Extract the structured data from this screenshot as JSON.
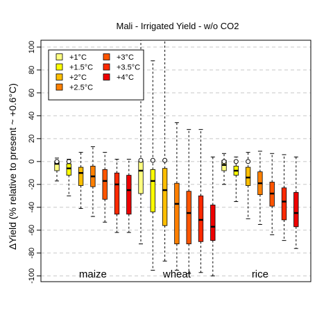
{
  "chart_data": {
    "type": "box",
    "title": "Mali - Irrigated Yield - w/o CO2",
    "ylabel": "ΔYield (% relative to present ~ +0.6°C)",
    "ylim": [
      -105,
      106
    ],
    "yticks": [
      -100,
      -80,
      -60,
      -40,
      -20,
      0,
      20,
      40,
      60,
      80,
      100
    ],
    "grid": "horizontal dashed",
    "legend": {
      "position": "top-left",
      "entries": [
        {
          "label": "+1°C",
          "color": "#FFFF80"
        },
        {
          "label": "+1.5°C",
          "color": "#FFFF00"
        },
        {
          "label": "+2°C",
          "color": "#FFBF00"
        },
        {
          "label": "+2.5°C",
          "color": "#FF8000"
        },
        {
          "label": "+3°C",
          "color": "#FF5500"
        },
        {
          "label": "+3.5°C",
          "color": "#FF2A00"
        },
        {
          "label": "+4°C",
          "color": "#EE0000"
        }
      ]
    },
    "groups": [
      {
        "name": "maize",
        "boxes": [
          {
            "warming": "+1°C",
            "whisker_low": -17,
            "q1": -8,
            "median": -2,
            "q3": 0,
            "whisker_high": 3,
            "outliers": [
              0
            ]
          },
          {
            "warming": "+1.5°C",
            "whisker_low": -30,
            "q1": -12,
            "median": -6,
            "q3": -2,
            "whisker_high": 2,
            "outliers": [
              0
            ]
          },
          {
            "warming": "+2°C",
            "whisker_low": -41,
            "q1": -21,
            "median": -10,
            "q3": -5,
            "whisker_high": 8,
            "outliers": []
          },
          {
            "warming": "+2.5°C",
            "whisker_low": -48,
            "q1": -22,
            "median": -13,
            "q3": -4,
            "whisker_high": 13,
            "outliers": []
          },
          {
            "warming": "+3°C",
            "whisker_low": -53,
            "q1": -33,
            "median": -17,
            "q3": -7,
            "whisker_high": 8,
            "outliers": []
          },
          {
            "warming": "+3.5°C",
            "whisker_low": -62,
            "q1": -46,
            "median": -20,
            "q3": -10,
            "whisker_high": 2,
            "outliers": []
          },
          {
            "warming": "+4°C",
            "whisker_low": -62,
            "q1": -46,
            "median": -25,
            "q3": -12,
            "whisker_high": 2,
            "outliers": []
          }
        ]
      },
      {
        "name": "wheat",
        "boxes": [
          {
            "warming": "+1°C",
            "whisker_low": -72,
            "q1": -28,
            "median": -8,
            "q3": 0,
            "whisker_high": 106,
            "outliers": [
              1
            ]
          },
          {
            "warming": "+1.5°C",
            "whisker_low": -95,
            "q1": -44,
            "median": -17,
            "q3": -7,
            "whisker_high": 88,
            "outliers": [
              1
            ]
          },
          {
            "warming": "+2°C",
            "whisker_low": -87,
            "q1": -56,
            "median": -25,
            "q3": -6,
            "whisker_high": 106,
            "outliers": [
              1
            ]
          },
          {
            "warming": "+2.5°C",
            "whisker_low": -95,
            "q1": -72,
            "median": -37,
            "q3": -19,
            "whisker_high": 34,
            "outliers": []
          },
          {
            "warming": "+3°C",
            "whisker_low": -98,
            "q1": -72,
            "median": -45,
            "q3": -26,
            "whisker_high": 28,
            "outliers": []
          },
          {
            "warming": "+3.5°C",
            "whisker_low": -97,
            "q1": -70,
            "median": -51,
            "q3": -30,
            "whisker_high": 28,
            "outliers": []
          },
          {
            "warming": "+4°C",
            "whisker_low": -100,
            "q1": -69,
            "median": -57,
            "q3": -38,
            "whisker_high": 4,
            "outliers": []
          }
        ]
      },
      {
        "name": "rice",
        "boxes": [
          {
            "warming": "+1°C",
            "whisker_low": -20,
            "q1": -8,
            "median": -3,
            "q3": 1,
            "whisker_high": 7,
            "outliers": [
              0
            ]
          },
          {
            "warming": "+1.5°C",
            "whisker_low": -35,
            "q1": -12,
            "median": -8,
            "q3": -4,
            "whisker_high": 4,
            "outliers": [
              0
            ]
          },
          {
            "warming": "+2°C",
            "whisker_low": -50,
            "q1": -21,
            "median": -14,
            "q3": -5,
            "whisker_high": 8,
            "outliers": [
              0
            ]
          },
          {
            "warming": "+2.5°C",
            "whisker_low": -55,
            "q1": -29,
            "median": -19,
            "q3": -9,
            "whisker_high": 9,
            "outliers": []
          },
          {
            "warming": "+3°C",
            "whisker_low": -64,
            "q1": -39,
            "median": -28,
            "q3": -18,
            "whisker_high": 7,
            "outliers": []
          },
          {
            "warming": "+3.5°C",
            "whisker_low": -69,
            "q1": -51,
            "median": -35,
            "q3": -23,
            "whisker_high": 6,
            "outliers": []
          },
          {
            "warming": "+4°C",
            "whisker_low": -76,
            "q1": -57,
            "median": -45,
            "q3": -27,
            "whisker_high": 4,
            "outliers": []
          }
        ]
      }
    ]
  }
}
